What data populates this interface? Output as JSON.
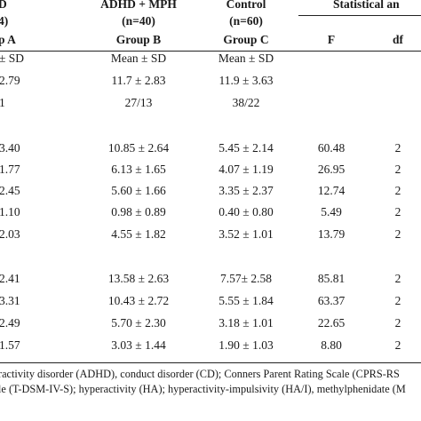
{
  "header": {
    "group_a": {
      "line1": "D",
      "line2": "4)",
      "line3": "p A"
    },
    "group_b": {
      "line1": "ADHD + MPH",
      "line2": "(n=40)",
      "line3": "Group B"
    },
    "group_c": {
      "line1": "Control",
      "line2": "(n=60)",
      "line3": "Group C"
    },
    "stats": {
      "line1": "Statistical an",
      "col_f": "F",
      "col_df": "df"
    }
  },
  "rows": [
    {
      "a": "± SD",
      "b": "Mean ± SD",
      "c": "Mean ± SD",
      "f": "",
      "df": ""
    },
    {
      "a": "2.79",
      "b": "11.7 ± 2.83",
      "c": "11.9 ± 3.63",
      "f": "",
      "df": ""
    },
    {
      "a": "1",
      "b": "27/13",
      "c": "38/22",
      "f": "",
      "df": ""
    },
    {
      "a": "3.40",
      "b": "10.85 ± 2.64",
      "c": "5.45 ± 2.14",
      "f": "60.48",
      "df": "2"
    },
    {
      "a": "1.77",
      "b": "6.13 ± 1.65",
      "c": "4.07 ± 1.19",
      "f": "26.95",
      "df": "2"
    },
    {
      "a": "2.45",
      "b": "5.60 ± 1.66",
      "c": "3.35 ± 2.37",
      "f": "12.74",
      "df": "2"
    },
    {
      "a": "1.10",
      "b": "0.98 ± 0.89",
      "c": "0.40 ± 0.80",
      "f": "5.49",
      "df": "2"
    },
    {
      "a": "2.03",
      "b": "4.55 ± 1.82",
      "c": "3.52 ± 1.01",
      "f": "13.79",
      "df": "2"
    },
    {
      "a": "2.41",
      "b": "13.58 ± 2.63",
      "c": "7.57± 2.58",
      "f": "85.81",
      "df": "2"
    },
    {
      "a": "3.31",
      "b": "10.43 ± 2.72",
      "c": "5.55 ± 1.84",
      "f": "63.37",
      "df": "2"
    },
    {
      "a": "2.49",
      "b": "5.70 ± 2.30",
      "c": "3.18 ± 1.01",
      "f": "22.65",
      "df": "2"
    },
    {
      "a": "1.57",
      "b": "3.03 ± 1.44",
      "c": "1.90 ± 1.03",
      "f": "8.80",
      "df": "2"
    }
  ],
  "footnote": {
    "line1": "ractivity disorder (ADHD), conduct disorder (CD); Conners Parent Rating Scale (CPRS-RS",
    "line2": "le (T-DSM-IV-S); hyperactivity (HA); hyperactivity-impulsivity (HA/I), methylphenidate (M"
  }
}
